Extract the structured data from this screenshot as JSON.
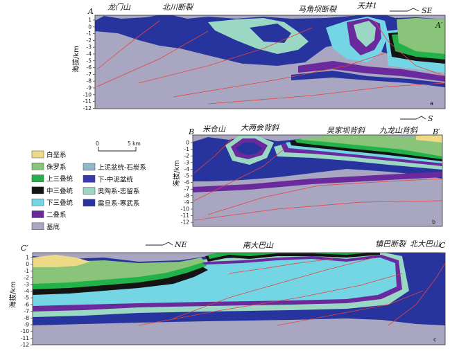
{
  "colors": {
    "basement": "#a8a6c0",
    "sinian_cambrian": "#27349d",
    "ordovician_silurian": "#9ad8c4",
    "upper_devonian_carboniferous": "#8fb8c8",
    "lower_middle_devonian": "#3a3aa8",
    "permian": "#6a2a9e",
    "lower_triassic": "#74d6e4",
    "middle_triassic": "#141414",
    "upper_triassic": "#22b24a",
    "jurassic": "#8ac47a",
    "cretaceous": "#eeda86",
    "fault": "#e8433f"
  },
  "section_a": {
    "label_start": "A",
    "label_end": "A′",
    "panel_letter": "a",
    "ylabel": "海拔/km",
    "yticks": [
      "1",
      "0",
      "-1",
      "-2",
      "-3",
      "-4",
      "-5",
      "-6",
      "-7",
      "-8",
      "-9",
      "-10",
      "-11",
      "-12"
    ],
    "titles": [
      "龙门山",
      "北川断裂",
      "马角坝断裂",
      "天井1"
    ],
    "direction": "SE"
  },
  "section_b": {
    "label_start": "B",
    "label_end": "B′",
    "panel_letter": "b",
    "ylabel": "海拔/km",
    "yticks": [
      "0",
      "-1",
      "-2",
      "-3",
      "-4",
      "-5",
      "-6",
      "-7",
      "-8",
      "-9",
      "-10",
      "-11",
      "-12"
    ],
    "titles": [
      "米仓山",
      "大两会背斜",
      "吴家坝背斜",
      "九龙山背斜"
    ],
    "direction": "S"
  },
  "section_c": {
    "label_start": "C′",
    "label_end": "C",
    "panel_letter": "c",
    "ylabel": "海拔/km",
    "yticks": [
      "1",
      "0",
      "-1",
      "-2",
      "-3",
      "-4",
      "-5",
      "-6",
      "-7",
      "-8",
      "-9",
      "-10",
      "-11",
      "-12"
    ],
    "titles": [
      "南大巴山",
      "镇巴断裂",
      "北大巴山"
    ],
    "direction": "NE"
  },
  "scale_bar": {
    "start": "0",
    "end": "5 km"
  },
  "legend": [
    {
      "label": "白垩系",
      "color": "#eeda86"
    },
    {
      "label": "侏罗系",
      "color": "#8ac47a"
    },
    {
      "label": "上三叠统",
      "color": "#22b24a"
    },
    {
      "label": "中三叠统",
      "color": "#141414"
    },
    {
      "label": "下三叠统",
      "color": "#74d6e4"
    },
    {
      "label": "二叠系",
      "color": "#6a2a9e"
    },
    {
      "label": "基底",
      "color": "#a8a6c0"
    },
    {
      "label": "上泥盆统-石炭系",
      "color": "#8fb8c8"
    },
    {
      "label": "下-中泥盆统",
      "color": "#3a3aa8"
    },
    {
      "label": "奥陶系-志留系",
      "color": "#9ad8c4"
    },
    {
      "label": "震旦系-寒武系",
      "color": "#27349d"
    }
  ]
}
